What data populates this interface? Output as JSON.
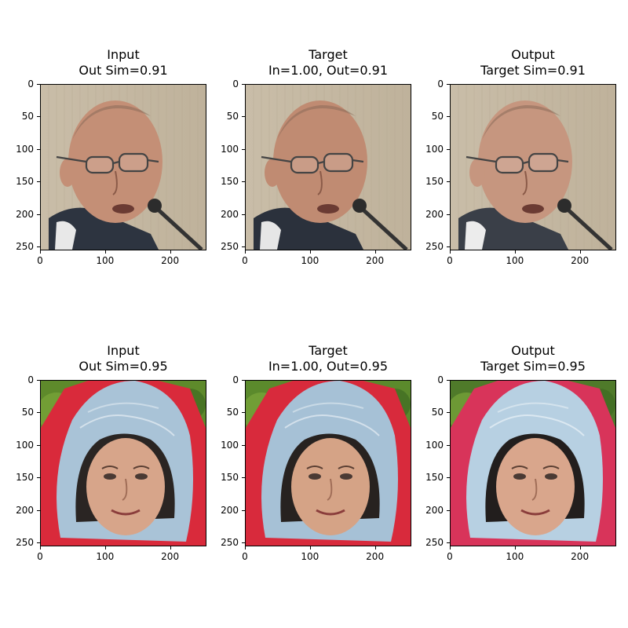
{
  "figure": {
    "panels": [
      {
        "title": "Input\nOut Sim=0.91",
        "image": "bald-man-with-glasses-and-microphone",
        "colors": {
          "bg": "#c9bda8",
          "skin": "#c48f76",
          "suit": "#2d3440",
          "shirt": "#e8e8e8"
        }
      },
      {
        "title": "Target\nIn=1.00, Out=0.91",
        "image": "bald-man-with-glasses-and-microphone",
        "colors": {
          "bg": "#c8bba5",
          "skin": "#c08b72",
          "suit": "#2b313c",
          "shirt": "#e6e6e6"
        }
      },
      {
        "title": "Output\nTarget Sim=0.91",
        "image": "bald-man-with-glasses-and-microphone",
        "colors": {
          "bg": "#cdc2ae",
          "skin": "#c6967f",
          "suit": "#3a3f48",
          "shirt": "#ececec"
        }
      },
      {
        "title": "Input\nOut Sim=0.95",
        "image": "woman-in-blue-hood-and-red-jacket",
        "colors": {
          "bg": "#5e8a2b",
          "hood": "#a9c3d7",
          "jacket": "#d92a3b",
          "skin": "#d7a58a",
          "hair": "#2a2523"
        }
      },
      {
        "title": "Target\nIn=1.00, Out=0.95",
        "image": "woman-in-blue-hood-and-red-jacket",
        "colors": {
          "bg": "#5b8a2c",
          "hood": "#a6c1d6",
          "jacket": "#d82a3c",
          "skin": "#d5a386",
          "hair": "#272220"
        }
      },
      {
        "title": "Output\nTarget Sim=0.95",
        "image": "woman-in-blue-hood-and-red-jacket",
        "colors": {
          "bg": "#4f7a2a",
          "hood": "#b7d0e2",
          "jacket": "#d8345a",
          "skin": "#d9a68c",
          "hair": "#221e1d"
        }
      }
    ],
    "y_ticks": [
      "0",
      "50",
      "100",
      "150",
      "200",
      "250"
    ],
    "x_ticks": [
      "0",
      "100",
      "200"
    ]
  }
}
